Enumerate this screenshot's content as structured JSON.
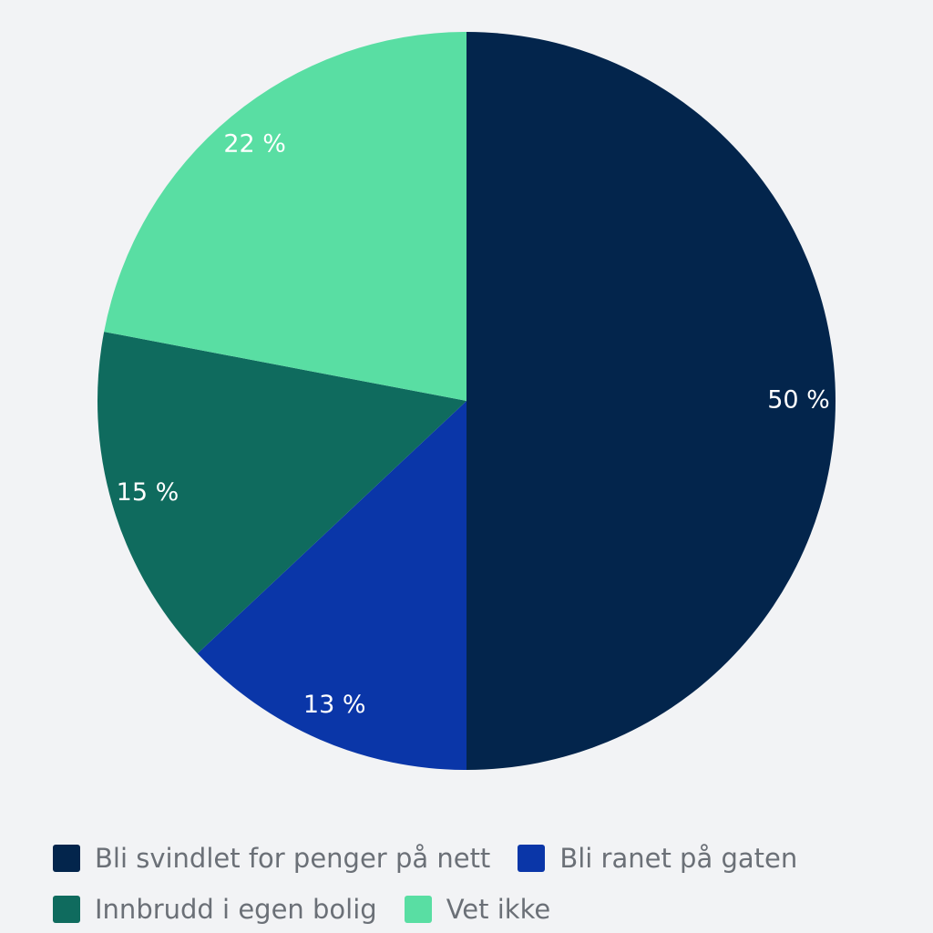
{
  "chart_data": {
    "type": "pie",
    "slices": [
      {
        "label": "Bli svindlet for penger på nett",
        "value": 50,
        "value_label": "50 %",
        "color": "#03254c"
      },
      {
        "label": "Bli ranet på gaten",
        "value": 13,
        "value_label": "13 %",
        "color": "#0a36a8"
      },
      {
        "label": "Innbrudd i egen bolig",
        "value": 15,
        "value_label": "15 %",
        "color": "#0f6b5e"
      },
      {
        "label": "Vet ikke",
        "value": 22,
        "value_label": "22 %",
        "color": "#59dea3"
      }
    ],
    "start_angle": "12 o'clock",
    "direction": "clockwise",
    "legend_position": "bottom",
    "title": ""
  },
  "legend": {
    "rows": [
      [
        {
          "label": "Bli svindlet for penger på nett",
          "color": "#03254c"
        },
        {
          "label": "Bli ranet på gaten",
          "color": "#0a36a8"
        }
      ],
      [
        {
          "label": "Innbrudd i egen bolig",
          "color": "#0f6b5e"
        },
        {
          "label": "Vet ikke",
          "color": "#59dea3"
        }
      ]
    ]
  }
}
